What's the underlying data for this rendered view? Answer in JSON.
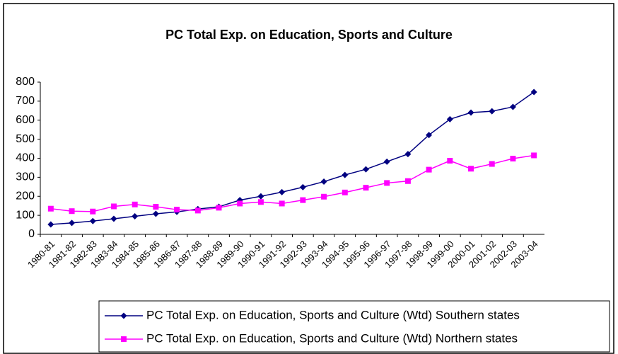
{
  "chart_data": {
    "type": "line",
    "title": "PC Total Exp. on Education, Sports and Culture",
    "categories": [
      "1980-81",
      "1981-82",
      "1982-83",
      "1983-84",
      "1984-85",
      "1985-86",
      "1986-87",
      "1987-88",
      "1988-89",
      "1989-90",
      "1990-91",
      "1991-92",
      "1992-93",
      "1993-94",
      "1994-95",
      "1995-96",
      "1996-97",
      "1997-98",
      "1998-99",
      "1999-00",
      "2000-01",
      "2001-02",
      "2002-03",
      "2003-04"
    ],
    "series": [
      {
        "name": "PC Total Exp. on Education, Sports and Culture (Wtd) Southern states",
        "color": "#000080",
        "marker": "diamond",
        "values": [
          52,
          60,
          70,
          82,
          95,
          108,
          118,
          133,
          145,
          180,
          200,
          222,
          248,
          277,
          312,
          342,
          382,
          422,
          522,
          605,
          640,
          647,
          670,
          748
        ]
      },
      {
        "name": "PC Total Exp. on Education, Sports and Culture (Wtd) Northern states",
        "color": "#ff00ff",
        "marker": "square",
        "values": [
          135,
          122,
          120,
          147,
          157,
          145,
          130,
          125,
          140,
          162,
          170,
          162,
          180,
          198,
          220,
          245,
          270,
          280,
          340,
          387,
          345,
          370,
          398,
          415
        ]
      }
    ],
    "ylim": [
      0,
      800
    ],
    "yticks": [
      0,
      100,
      200,
      300,
      400,
      500,
      600,
      700,
      800
    ],
    "grid": false
  }
}
